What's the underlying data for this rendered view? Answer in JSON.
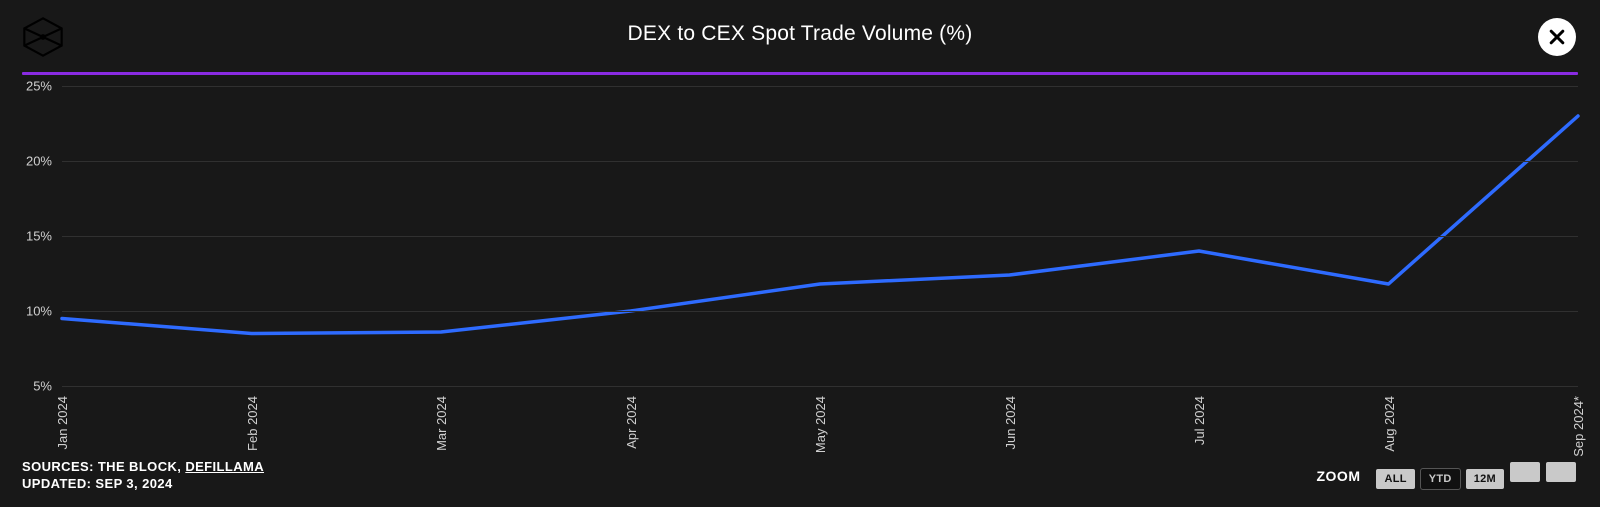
{
  "title": "DEX to CEX Spot Trade Volume (%)",
  "colors": {
    "background": "#181818",
    "separator": "#8a2be2",
    "grid": "#303030",
    "axis_text": "#d0d0d0",
    "line": "#2e6bff",
    "title_text": "#ffffff"
  },
  "chart": {
    "type": "line",
    "line_width": 3.5,
    "y": {
      "min": 5,
      "max": 25,
      "ticks": [
        5,
        10,
        15,
        20,
        25
      ],
      "suffix": "%"
    },
    "x_labels": [
      "Jan 2024",
      "Feb 2024",
      "Mar 2024",
      "Apr 2024",
      "May 2024",
      "Jun 2024",
      "Jul 2024",
      "Aug 2024",
      "Sep 2024*"
    ],
    "values": [
      9.5,
      8.5,
      8.6,
      10.0,
      11.8,
      12.4,
      14.0,
      11.8,
      23.0
    ]
  },
  "footer": {
    "sources_label": "SOURCES:",
    "source_1": "THE BLOCK,",
    "source_2": "DEFILLAMA",
    "updated_label": "UPDATED:",
    "updated_value": "SEP 3, 2024"
  },
  "zoom": {
    "label": "ZOOM",
    "buttons": [
      {
        "label": "ALL",
        "active": false
      },
      {
        "label": "YTD",
        "active": true
      },
      {
        "label": "12M",
        "active": false
      },
      {
        "label": "",
        "active": false
      },
      {
        "label": "",
        "active": false
      }
    ]
  }
}
